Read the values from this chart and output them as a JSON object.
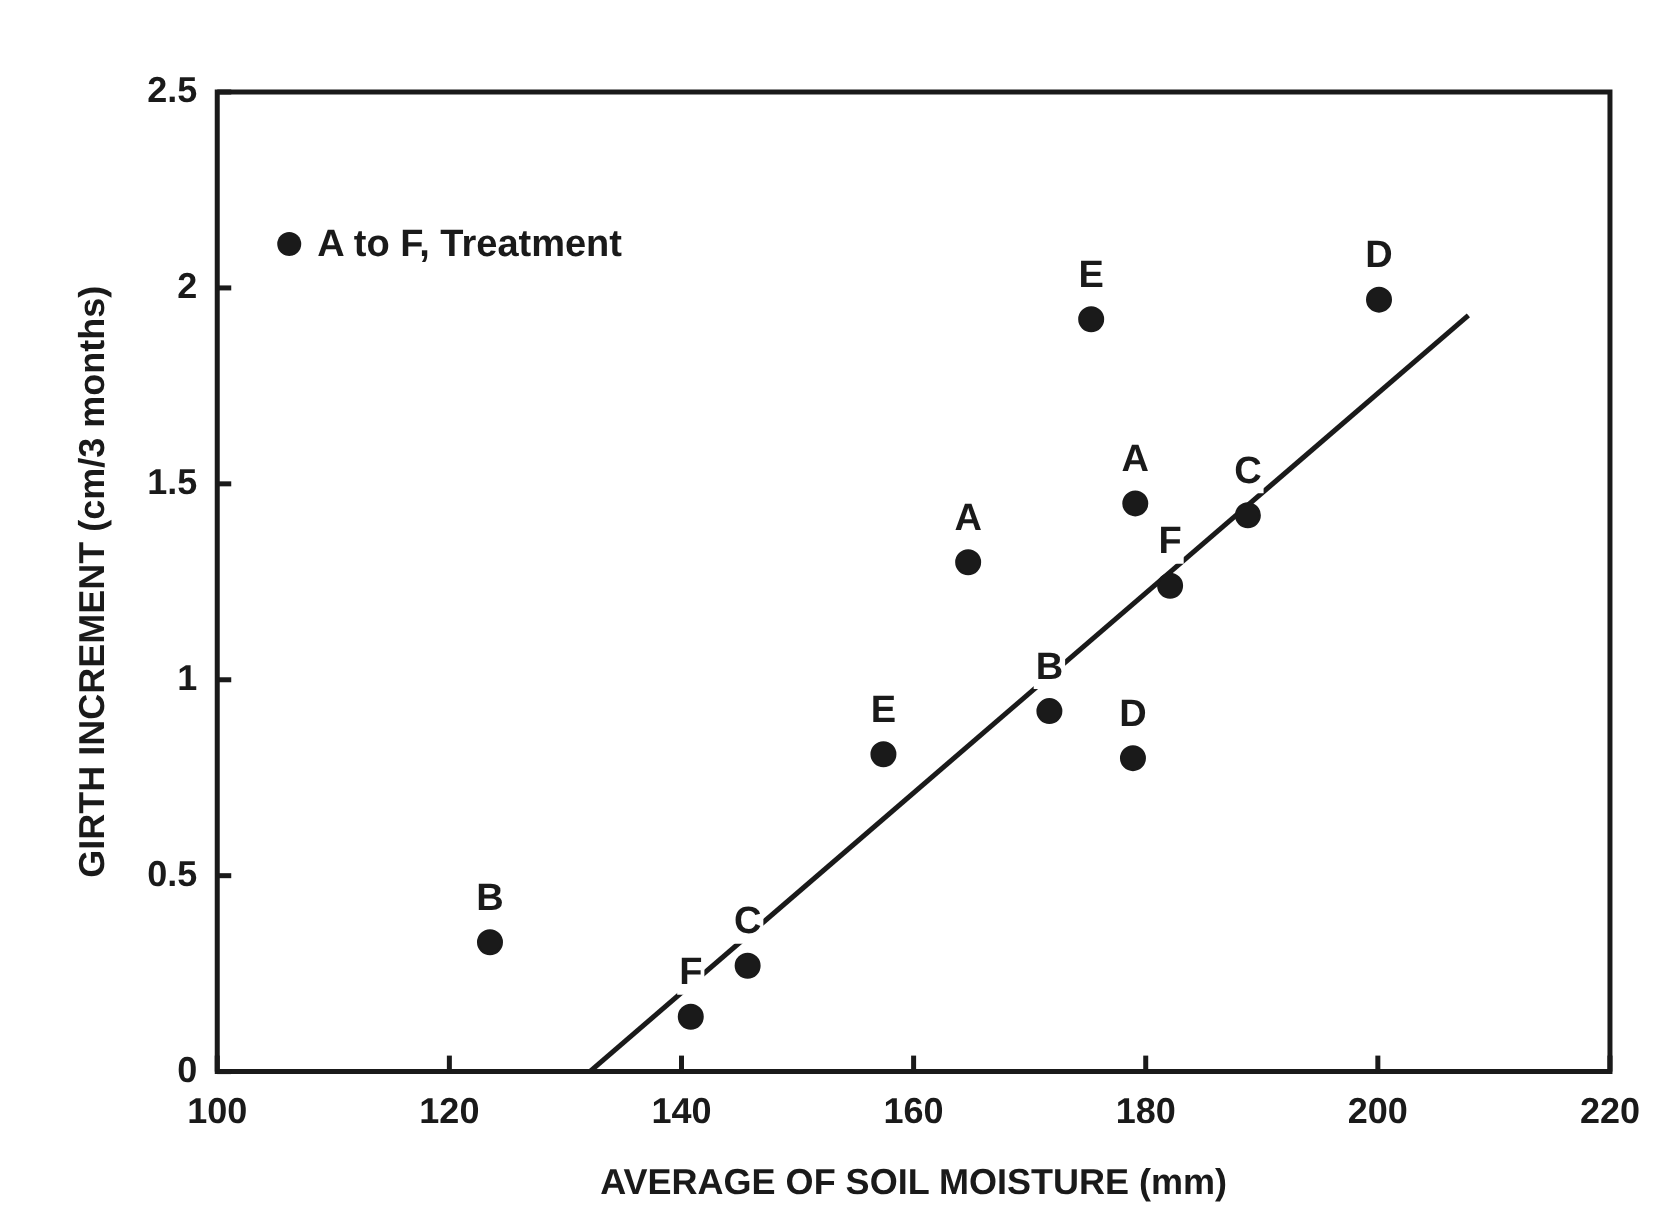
{
  "chart_data": {
    "type": "scatter",
    "xlabel": "AVERAGE OF SOIL MOISTURE (mm)",
    "ylabel": "GIRTH INCREMENT (cm/3 months)",
    "x": [
      123.5,
      140.8,
      145.7,
      157.4,
      164.7,
      171.7,
      178.9,
      175.3,
      179.1,
      182.1,
      188.8,
      200.1
    ],
    "series": [
      {
        "name": "A to F, Treatment",
        "color": "#1a1a1a",
        "values": [
          0.33,
          0.14,
          0.27,
          0.81,
          1.3,
          0.92,
          0.8,
          1.92,
          1.45,
          1.24,
          1.42,
          1.97
        ],
        "marker": "circle"
      },
      {
        "type": "line",
        "color": "#1a1a1a",
        "x": [
          132.1,
          207.8
        ],
        "values": [
          0,
          1.93
        ],
        "marker": "none"
      }
    ],
    "annotations": [
      {
        "text": "B",
        "x": 123.5,
        "y": 0.33
      },
      {
        "text": "F",
        "x": 140.8,
        "y": 0.14
      },
      {
        "text": "C",
        "x": 145.7,
        "y": 0.27
      },
      {
        "text": "E",
        "x": 157.4,
        "y": 0.81
      },
      {
        "text": "A",
        "x": 164.7,
        "y": 1.3
      },
      {
        "text": "B",
        "x": 171.7,
        "y": 0.92
      },
      {
        "text": "D",
        "x": 178.9,
        "y": 0.8
      },
      {
        "text": "E",
        "x": 175.3,
        "y": 1.92
      },
      {
        "text": "A",
        "x": 179.1,
        "y": 1.45
      },
      {
        "text": "F",
        "x": 182.1,
        "y": 1.24
      },
      {
        "text": "C",
        "x": 188.8,
        "y": 1.42
      },
      {
        "text": "D",
        "x": 200.1,
        "y": 1.97
      }
    ],
    "xlim": [
      100,
      220
    ],
    "xticks": [
      100,
      120,
      140,
      160,
      180,
      200,
      220
    ],
    "ylim": [
      0,
      2.5
    ],
    "yticks": [
      0,
      0.5,
      1,
      1.5,
      2,
      2.5
    ],
    "grid": false,
    "legend": "top left"
  }
}
